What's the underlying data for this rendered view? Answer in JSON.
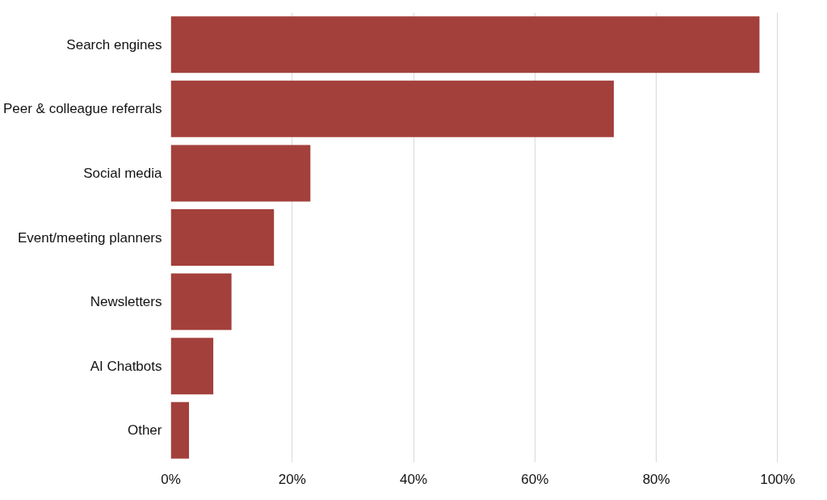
{
  "chart_data": {
    "type": "bar",
    "orientation": "horizontal",
    "categories": [
      "Search engines",
      "Peer & colleague referrals",
      "Social media",
      "Event/meeting planners",
      "Newsletters",
      "AI Chatbots",
      "Other"
    ],
    "values": [
      97,
      73,
      23,
      17,
      10,
      7,
      3
    ],
    "color": "#a3403b",
    "xlim": [
      0,
      100
    ],
    "xticks": [
      {
        "value": 0,
        "label": "0%"
      },
      {
        "value": 20,
        "label": "20%"
      },
      {
        "value": 40,
        "label": "40%"
      },
      {
        "value": 60,
        "label": "60%"
      },
      {
        "value": 80,
        "label": "80%"
      },
      {
        "value": 100,
        "label": "100%"
      }
    ],
    "grid": "x"
  }
}
